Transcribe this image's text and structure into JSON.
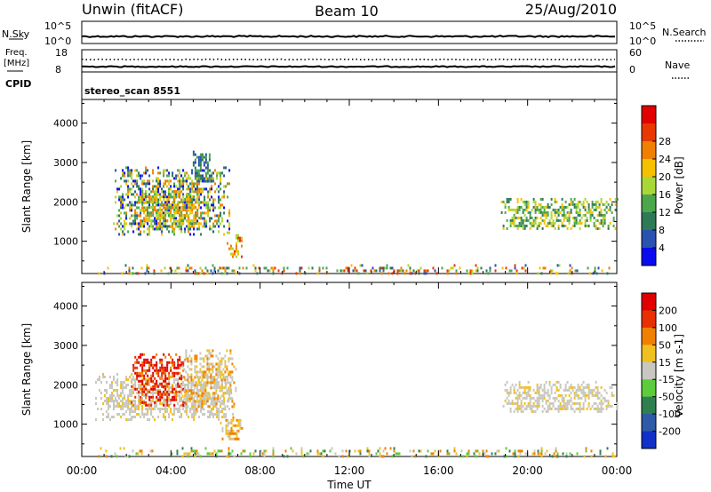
{
  "header": {
    "station": "Unwin (fitACF)",
    "beam": "Beam 10",
    "date": "25/Aug/2010"
  },
  "info_panel": {
    "nsky_label": "N.Sky",
    "nsky_ticks": [
      "10^5",
      "10^0"
    ],
    "nsearch_label": "N.Search",
    "nsearch_ticks": [
      "10^5",
      "10^0"
    ],
    "freq_label": "Freq.",
    "freq_unit": "[MHz]",
    "freq_ticks": [
      "18",
      "8"
    ],
    "nave_label": "Nave",
    "nave_ticks": [
      "60",
      "0"
    ],
    "cpid_label": "CPID",
    "cpid_value": "stereo_scan 8551"
  },
  "chart_data": [
    {
      "type": "heatmap",
      "quantity": "Power",
      "xlabel": "",
      "ylabel": "Slant Range [km]",
      "xlim": [
        0,
        24
      ],
      "ylim": [
        180,
        4600
      ],
      "yticks": [
        "1000",
        "2000",
        "3000",
        "4000"
      ],
      "colorbar": {
        "label": "Power [dB]",
        "ticks": [
          "4",
          "8",
          "12",
          "16",
          "20",
          "24",
          "28"
        ],
        "colors": [
          "#0a0af0",
          "#2a52b0",
          "#2e7a56",
          "#4ca64c",
          "#a8d838",
          "#f5c000",
          "#f08000",
          "#e83800",
          "#e00000"
        ]
      },
      "regions": [
        {
          "t": [
            1.4,
            6.6
          ],
          "r": [
            1150,
            2900
          ],
          "palette": [
            0,
            1,
            2,
            3,
            4,
            5,
            6
          ]
        },
        {
          "t": [
            2.6,
            5.3
          ],
          "r": [
            1400,
            2300
          ],
          "palette": [
            3,
            4,
            5,
            6
          ]
        },
        {
          "t": [
            4.9,
            5.8
          ],
          "r": [
            2500,
            3300
          ],
          "palette": [
            1,
            2,
            3
          ]
        },
        {
          "t": [
            6.5,
            7.2
          ],
          "r": [
            600,
            1250
          ],
          "palette": [
            4,
            5,
            6,
            7
          ]
        },
        {
          "t": [
            18.8,
            24.0
          ],
          "r": [
            1300,
            2100
          ],
          "palette": [
            2,
            3,
            4,
            5
          ]
        },
        {
          "t": [
            0.5,
            24.0
          ],
          "r": [
            200,
            420
          ],
          "palette": [
            1,
            2,
            3,
            4,
            5,
            6,
            7
          ]
        }
      ]
    },
    {
      "type": "heatmap",
      "quantity": "Velocity",
      "xlabel": "Time UT",
      "ylabel": "Slant Range [km]",
      "xlim": [
        0,
        24
      ],
      "ylim": [
        180,
        4600
      ],
      "xticks": [
        "00:00",
        "04:00",
        "08:00",
        "12:00",
        "16:00",
        "20:00",
        "00:00"
      ],
      "yticks": [
        "1000",
        "2000",
        "3000",
        "4000"
      ],
      "colorbar": {
        "label": "Velocity [m s-1]",
        "ticks": [
          "200",
          "100",
          "50",
          "15",
          "-15",
          "-50",
          "-100",
          "-200"
        ],
        "colors": [
          "#1030c8",
          "#2e5aa8",
          "#2e8050",
          "#5ccc3c",
          "#c8c8c0",
          "#f0c020",
          "#f08000",
          "#e83000",
          "#e00000"
        ]
      },
      "regions": [
        {
          "t": [
            0.6,
            6.8
          ],
          "r": [
            1100,
            2300
          ],
          "palette": [
            4,
            4,
            4,
            5
          ]
        },
        {
          "t": [
            2.2,
            4.6
          ],
          "r": [
            1500,
            2800
          ],
          "palette": [
            8,
            7,
            8,
            6
          ]
        },
        {
          "t": [
            4.4,
            6.9
          ],
          "r": [
            1400,
            2900
          ],
          "palette": [
            4,
            5,
            6,
            4
          ]
        },
        {
          "t": [
            6.2,
            7.2
          ],
          "r": [
            600,
            1200
          ],
          "palette": [
            5,
            6,
            4
          ]
        },
        {
          "t": [
            18.8,
            24.0
          ],
          "r": [
            1300,
            2100
          ],
          "palette": [
            4,
            4,
            4,
            5
          ]
        },
        {
          "t": [
            0.5,
            24.0
          ],
          "r": [
            200,
            420
          ],
          "palette": [
            3,
            4,
            5,
            2,
            6
          ]
        }
      ]
    }
  ]
}
